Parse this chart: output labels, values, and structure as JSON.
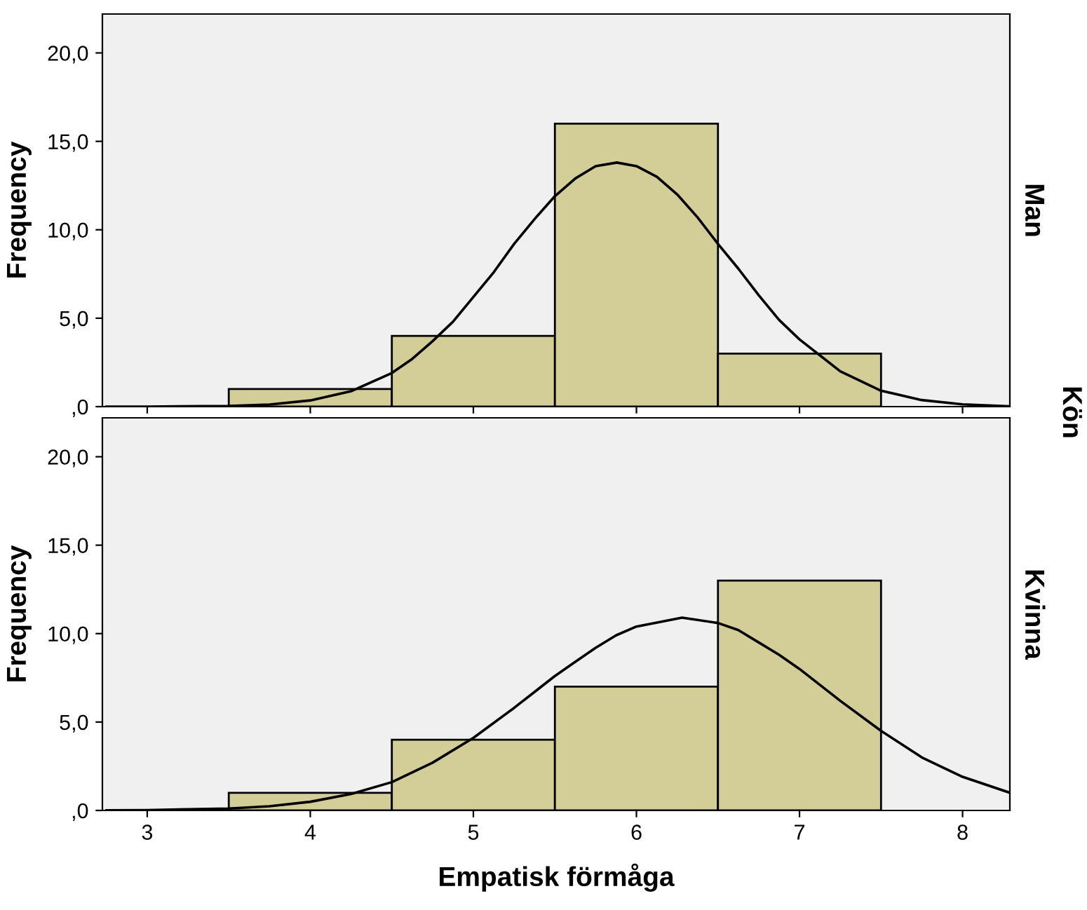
{
  "chart_data": [
    {
      "type": "histogram",
      "ylabel": "Frequency",
      "bins": [
        3.5,
        4.5,
        5.5,
        6.5,
        7.5
      ],
      "values": [
        1,
        4,
        16,
        3
      ],
      "color": "#d3ce97",
      "xlim": [
        2.725,
        8.29
      ],
      "ylim": [
        0,
        22.2
      ],
      "xticks": [
        3,
        4,
        5,
        6,
        7,
        8
      ],
      "yticks": [
        {
          "value": 0,
          "label": ",0"
        },
        {
          "value": 5,
          "label": "5,0"
        },
        {
          "value": 10,
          "label": "10,0"
        },
        {
          "value": 15,
          "label": "15,0"
        },
        {
          "value": 20,
          "label": "20,0"
        }
      ],
      "tick_labels": "y",
      "grid": false,
      "annotations": [
        "Man",
        "Kön"
      ],
      "series": [
        {
          "type": "line",
          "color": "#000000",
          "x": [
            2.75,
            3,
            3.5,
            3.75,
            4,
            4.25,
            4.5,
            4.625,
            4.75,
            4.875,
            5,
            5.125,
            5.25,
            5.375,
            5.5,
            5.625,
            5.75,
            5.88,
            6,
            6.125,
            6.25,
            6.375,
            6.5,
            6.625,
            6.75,
            6.875,
            7,
            7.25,
            7.5,
            7.75,
            8,
            8.29
          ],
          "values": [
            0,
            0,
            0.04,
            0.12,
            0.35,
            0.87,
            1.9,
            2.7,
            3.7,
            4.8,
            6.2,
            7.6,
            9.2,
            10.6,
            11.9,
            12.9,
            13.6,
            13.8,
            13.6,
            13.0,
            12.0,
            10.7,
            9.2,
            7.8,
            6.3,
            4.9,
            3.8,
            2.0,
            0.9,
            0.37,
            0.13,
            0.02
          ]
        }
      ]
    },
    {
      "type": "histogram",
      "xlabel": "Empatisk förmåga",
      "ylabel": "Frequency",
      "bins": [
        3.5,
        4.5,
        5.5,
        6.5,
        7.5
      ],
      "values": [
        1,
        4,
        7,
        13
      ],
      "color": "#d3ce97",
      "xlim": [
        2.725,
        8.29
      ],
      "ylim": [
        0,
        22.2
      ],
      "xticks": [
        3,
        4,
        5,
        6,
        7,
        8
      ],
      "yticks": [
        {
          "value": 0,
          "label": ",0"
        },
        {
          "value": 5,
          "label": "5,0"
        },
        {
          "value": 10,
          "label": "10,0"
        },
        {
          "value": 15,
          "label": "15,0"
        },
        {
          "value": 20,
          "label": "20,0"
        }
      ],
      "grid": false,
      "annotations": [
        "Kvinna"
      ],
      "series": [
        {
          "type": "line",
          "color": "#000000",
          "x": [
            2.75,
            3,
            3.5,
            3.75,
            4,
            4.25,
            4.5,
            4.75,
            5,
            5.25,
            5.375,
            5.5,
            5.625,
            5.75,
            5.875,
            6,
            6.28,
            6.5,
            6.625,
            6.75,
            6.875,
            7,
            7.125,
            7.25,
            7.5,
            7.75,
            8,
            8.29
          ],
          "values": [
            0.01,
            0.02,
            0.11,
            0.24,
            0.49,
            0.93,
            1.6,
            2.7,
            4.1,
            5.8,
            6.7,
            7.6,
            8.4,
            9.2,
            9.9,
            10.4,
            10.9,
            10.6,
            10.2,
            9.5,
            8.8,
            8.0,
            7.1,
            6.2,
            4.5,
            3.0,
            1.9,
            1.0
          ]
        }
      ]
    }
  ]
}
